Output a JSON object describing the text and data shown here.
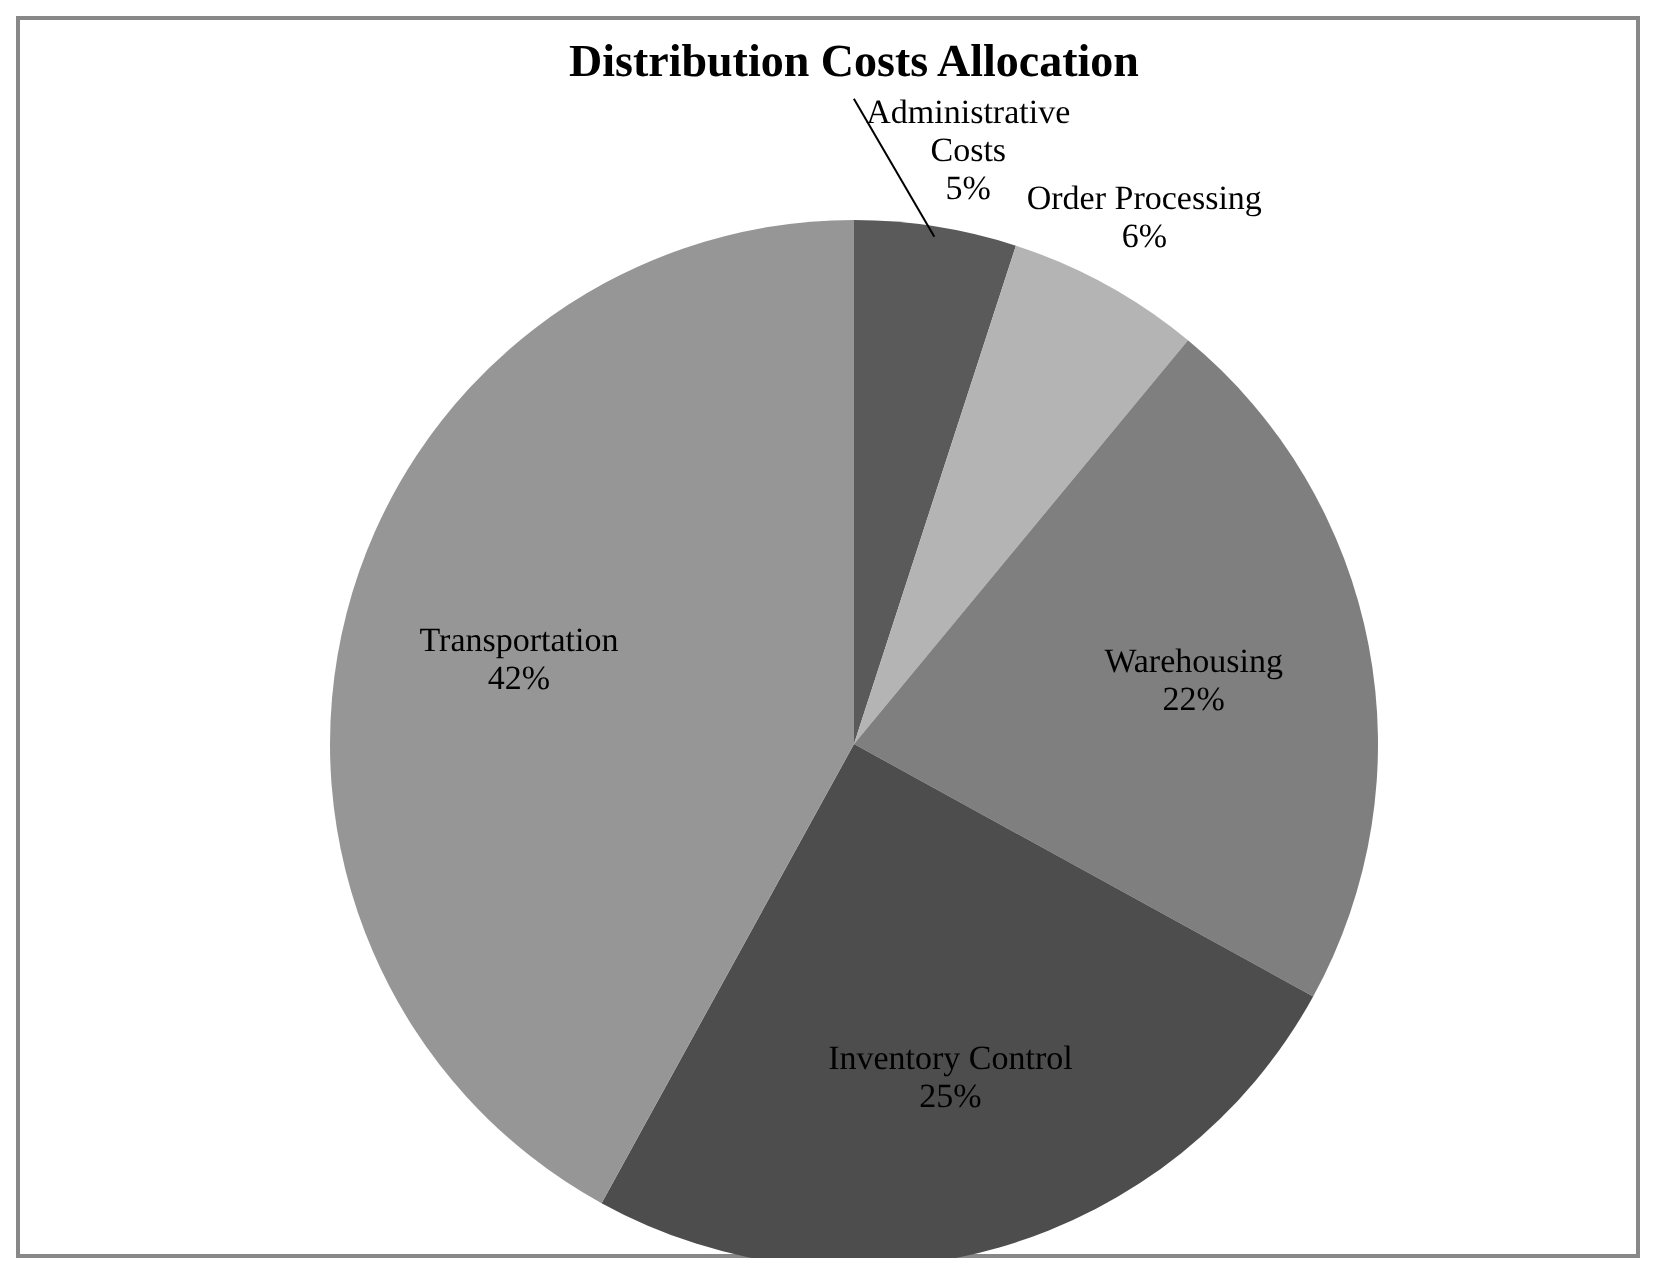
{
  "chart_data": {
    "type": "pie",
    "title": "Distribution Costs Allocation",
    "categories": [
      "Administrative Costs",
      "Order Processing",
      "Warehousing",
      "Inventory Control",
      "Transportation"
    ],
    "values": [
      5,
      6,
      22,
      25,
      42
    ],
    "colors": [
      "#5a5a5a",
      "#b4b4b4",
      "#7f7f7f",
      "#4d4d4d",
      "#969696"
    ],
    "value_labels": [
      "5%",
      "6%",
      "22%",
      "25%",
      "42%"
    ]
  }
}
